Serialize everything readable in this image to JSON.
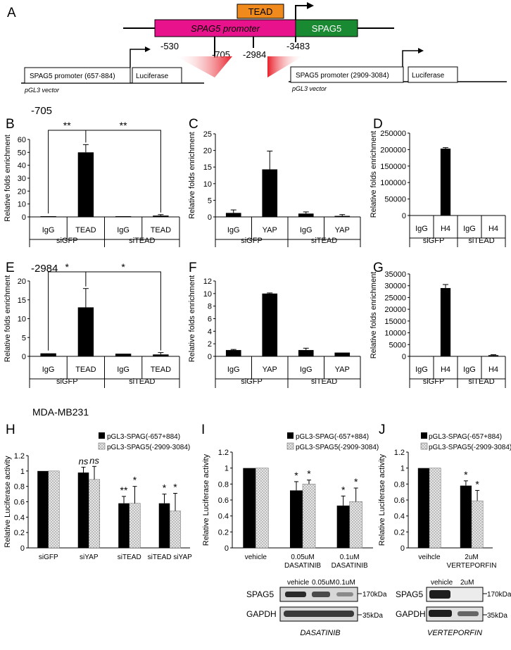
{
  "panel_letters": [
    "A",
    "B",
    "C",
    "D",
    "E",
    "F",
    "G",
    "H",
    "I",
    "J"
  ],
  "schematic": {
    "tead_box": "TEAD",
    "promoter_box": "SPAG5 promoter",
    "gene_box": "SPAG5",
    "positions": [
      "-530",
      "-705",
      "-2984",
      "-3483"
    ],
    "left_construct": {
      "promoter": "SPAG5 promoter  (657-884)",
      "reporter": "Luciferase",
      "vector": "pGL3 vector"
    },
    "right_construct": {
      "promoter": "SPAG5 promoter  (2909-3084)",
      "reporter": "Luciferase",
      "vector": "pGL3 vector"
    }
  },
  "row_labels": {
    "B": "-705",
    "E": "-2984",
    "H": "MDA-MB231"
  },
  "chip_ylabel": "Relative folds enrichment",
  "luc_ylabel": "Relative Luciferase activity",
  "legend": {
    "s1": "pGL3-SPAG(-657+884)",
    "s2": "pGL3-SPAG5(-2909-3084)"
  },
  "chart_data": [
    {
      "panel": "B",
      "type": "bar",
      "groups": [
        "siGFP",
        "siTEAD"
      ],
      "categories": [
        "IgG",
        "TEAD",
        "IgG",
        "TEAD"
      ],
      "values": [
        0.5,
        50,
        0.5,
        1
      ],
      "errors": [
        0,
        6,
        0,
        0.8
      ],
      "ylim": [
        0,
        60
      ],
      "yticks": [
        0,
        10,
        20,
        30,
        40,
        50,
        60
      ],
      "ylabel": "Relative folds enrichment",
      "sig": [
        "**",
        "**"
      ]
    },
    {
      "panel": "C",
      "type": "bar",
      "groups": [
        "siGFP",
        "siTEAD"
      ],
      "categories": [
        "IgG",
        "YAP",
        "IgG",
        "YAP"
      ],
      "values": [
        1.2,
        14.3,
        1,
        0.3
      ],
      "errors": [
        0.9,
        5.5,
        0.5,
        0.4
      ],
      "ylim": [
        0,
        25
      ],
      "yticks": [
        0,
        5,
        10,
        15,
        20,
        25
      ],
      "ylabel": "Relative folds enrichment"
    },
    {
      "panel": "D",
      "type": "bar",
      "groups": [
        "siGFP",
        "siTEAD"
      ],
      "categories": [
        "IgG",
        "H4",
        "IgG",
        "H4"
      ],
      "values": [
        0,
        203000,
        0,
        0
      ],
      "errors": [
        0,
        3000,
        0,
        0
      ],
      "ylim": [
        0,
        250000
      ],
      "yticks": [
        0,
        50000,
        100000,
        150000,
        200000,
        250000
      ],
      "ylabel": "Relative folds enrichment"
    },
    {
      "panel": "E",
      "type": "bar",
      "groups": [
        "siGFP",
        "siTEAD"
      ],
      "categories": [
        "IgG",
        "TEAD",
        "IgG",
        "TEAD"
      ],
      "values": [
        0.8,
        13,
        0.7,
        0.5
      ],
      "errors": [
        0,
        5,
        0,
        0.5
      ],
      "ylim": [
        0,
        20
      ],
      "yticks": [
        0,
        5,
        10,
        15,
        20
      ],
      "ylabel": "Relative folds enrichment",
      "sig": [
        "*",
        "*"
      ]
    },
    {
      "panel": "F",
      "type": "bar",
      "groups": [
        "siGFP",
        "siTEAD"
      ],
      "categories": [
        "IgG",
        "YAP",
        "IgG",
        "YAP"
      ],
      "values": [
        1,
        10,
        1,
        0.6
      ],
      "errors": [
        0.1,
        0.1,
        0.3,
        0
      ],
      "ylim": [
        0,
        12
      ],
      "yticks": [
        0,
        2,
        4,
        6,
        8,
        10,
        12
      ],
      "ylabel": "Relative folds enrichment"
    },
    {
      "panel": "G",
      "type": "bar",
      "groups": [
        "siGFP",
        "siTEAD"
      ],
      "categories": [
        "IgG",
        "H4",
        "IgG",
        "H4"
      ],
      "values": [
        0,
        29000,
        0,
        500
      ],
      "errors": [
        0,
        1500,
        0,
        200
      ],
      "ylim": [
        0,
        35000
      ],
      "yticks": [
        0,
        5000,
        10000,
        15000,
        20000,
        25000,
        30000,
        35000
      ],
      "ylabel": "Relative folds enrichment"
    },
    {
      "panel": "H",
      "type": "bar",
      "categories": [
        "siGFP",
        "siYAP",
        "siTEAD",
        "siTEAD siYAP"
      ],
      "series": [
        {
          "name": "pGL3-SPAG(-657+884)",
          "values": [
            1,
            0.98,
            0.58,
            0.58
          ],
          "errors": [
            0,
            0.07,
            0.09,
            0.12
          ]
        },
        {
          "name": "pGL3-SPAG5(-2909-3084)",
          "values": [
            1,
            0.89,
            0.58,
            0.48
          ],
          "errors": [
            0,
            0.17,
            0.22,
            0.23
          ]
        }
      ],
      "ylim": [
        0,
        1.2
      ],
      "yticks": [
        "0",
        "0.2",
        "0.4",
        "0.6",
        "0.8",
        "1",
        "1.2"
      ],
      "ylabel": "Relative Luciferase activity",
      "annotations": [
        [
          "",
          ""
        ],
        [
          "ns",
          "ns"
        ],
        [
          "**",
          "*"
        ],
        [
          "*",
          "*"
        ]
      ]
    },
    {
      "panel": "I",
      "type": "bar",
      "categories": [
        "vehicle",
        "0.05uM DASATINIB",
        "0.1uM DASATINIB"
      ],
      "series": [
        {
          "name": "pGL3-SPAG(-657+884)",
          "values": [
            1,
            0.72,
            0.53
          ],
          "errors": [
            0,
            0.11,
            0.12
          ]
        },
        {
          "name": "pGL3-SPAG5(-2909-3084)",
          "values": [
            1,
            0.8,
            0.58
          ],
          "errors": [
            0,
            0.05,
            0.17
          ]
        }
      ],
      "ylim": [
        0,
        1.2
      ],
      "yticks": [
        "0",
        "0.2",
        "0.4",
        "0.6",
        "0.8",
        "1",
        "1.2"
      ],
      "ylabel": "Relative Luciferase activity",
      "annotations": [
        [
          "",
          ""
        ],
        [
          "*",
          "*"
        ],
        [
          "*",
          "*"
        ]
      ]
    },
    {
      "panel": "J",
      "type": "bar",
      "categories": [
        "veihcle",
        "2uM VERTEPORFIN"
      ],
      "series": [
        {
          "name": "pGL3-SPAG(-657+884)",
          "values": [
            1,
            0.78
          ],
          "errors": [
            0,
            0.06
          ]
        },
        {
          "name": "pGL3-SPAG5(-2909-3084)",
          "values": [
            1,
            0.59
          ],
          "errors": [
            0,
            0.13
          ]
        }
      ],
      "ylim": [
        0,
        1.2
      ],
      "yticks": [
        "0",
        "0.2",
        "0.4",
        "0.6",
        "0.8",
        "1",
        "1.2"
      ],
      "ylabel": "Relative Luciferase activity",
      "annotations": [
        [
          "",
          ""
        ],
        [
          "*",
          "*"
        ]
      ]
    }
  ],
  "westerns": {
    "I": {
      "lanes": [
        "vehicle",
        "0.05uM",
        "0.1uM"
      ],
      "rows": [
        "SPAG5",
        "GAPDH"
      ],
      "kda": [
        "170kDa",
        "35kDa"
      ],
      "caption": "DASATINIB"
    },
    "J": {
      "lanes": [
        "vehicle",
        "2uM"
      ],
      "rows": [
        "SPAG5",
        "GAPDH"
      ],
      "kda": [
        "170kDa",
        "35kDa"
      ],
      "caption": "VERTEPORFIN"
    }
  },
  "colors": {
    "tead": "#f08a1c",
    "promoter": "#e8138c",
    "gene": "#1a8a32",
    "bar": "#000000",
    "hatch": "#c8c8c8",
    "wedge": "#e8202a"
  }
}
